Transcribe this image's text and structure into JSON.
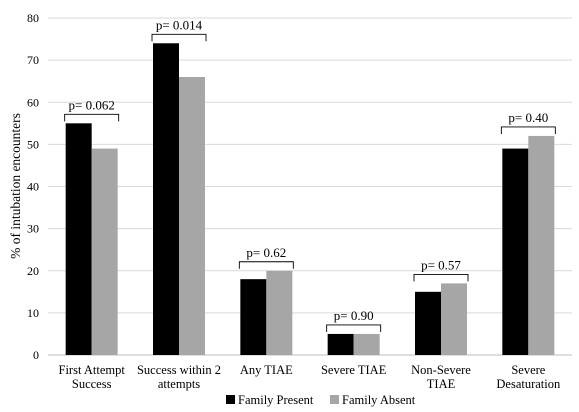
{
  "chart_data": {
    "type": "bar",
    "title": "",
    "xlabel": "",
    "ylabel": "% of intubation encounters",
    "ylim": [
      0,
      80
    ],
    "yticks": [
      0,
      10,
      20,
      30,
      40,
      50,
      60,
      70,
      80
    ],
    "grid": true,
    "legend_position": "bottom",
    "categories": [
      [
        "First Attempt",
        "Success"
      ],
      [
        "Success within 2",
        "attempts"
      ],
      [
        "Any TIAE"
      ],
      [
        "Severe TIAE"
      ],
      [
        "Non-Severe",
        "TIAE"
      ],
      [
        "Severe",
        "Desaturation"
      ]
    ],
    "series": [
      {
        "name": "Family Present",
        "color": "#000000",
        "values": [
          55,
          74,
          18,
          5,
          15,
          49
        ]
      },
      {
        "name": "Family Absent",
        "color": "#a6a6a6",
        "values": [
          49,
          66,
          20,
          5,
          17,
          52
        ]
      }
    ],
    "annotations": [
      "p= 0.062",
      "p= 0.014",
      "p= 0.62",
      "p= 0.90",
      "p= 0.57",
      "p= 0.40"
    ]
  }
}
